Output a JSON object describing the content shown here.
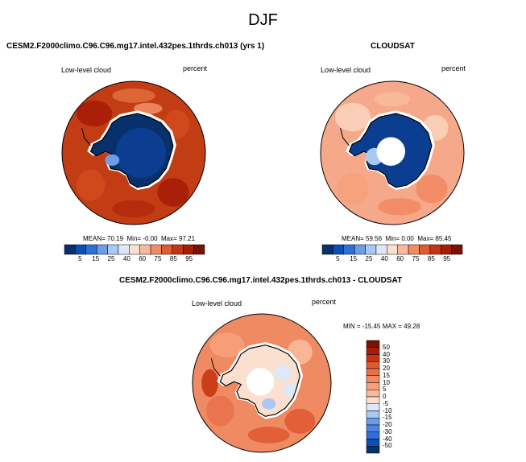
{
  "figure_title": "DJF",
  "panels": {
    "model": {
      "title": "CESM2.F2000climo.C96.C96.mg17.intel.432pes.1thrds.ch013 (yrs 1)",
      "variable": "Low-level cloud",
      "units": "percent",
      "mean_label": "MEAN=",
      "mean": "70.19",
      "min_label": "Min=",
      "min": "-0.00",
      "max_label": "Max=",
      "max": "97.21"
    },
    "obs": {
      "title": "CLOUDSAT",
      "variable": "Low-level cloud",
      "units": "percent",
      "mean_label": "MEAN=",
      "mean": "59.56",
      "min_label": "Min=",
      "min": "0.00",
      "max_label": "Max=",
      "max": "85.45"
    },
    "diff": {
      "title": "CESM2.F2000climo.C96.C96.mg17.intel.432pes.1thrds.ch013 - CLOUDSAT",
      "variable": "Low-level cloud",
      "units": "percent",
      "minmax": "MIN = -15.45  MAX =  49.28"
    }
  },
  "colors": {
    "abs_scale": [
      "#08306b",
      "#0b4fb0",
      "#2f6fd6",
      "#6b9de8",
      "#a9c8f2",
      "#dde9f8",
      "#fbe0d0",
      "#f9b99a",
      "#f28a63",
      "#e05a32",
      "#c83412",
      "#a61c05",
      "#7a1204"
    ],
    "diff_scale": [
      "#08306b",
      "#0b4fb0",
      "#2f6fd6",
      "#4d86e2",
      "#6b9de8",
      "#a9c8f2",
      "#dde9f8",
      "#fbe0d0",
      "#f9b99a",
      "#f7a07b",
      "#f28a63",
      "#e8714a",
      "#e05a32",
      "#c83412",
      "#a61c05",
      "#7a1204"
    ],
    "ocean_model": "#c23c14",
    "ocean_obs": "#f5a98a",
    "ocean_diff": "#ef8a63"
  },
  "chart_data": [
    {
      "type": "heatmap",
      "projection": "south-polar-stereographic",
      "title": "CESM2.F2000climo.C96.C96.mg17.intel.432pes.1thrds.ch013 (yrs 1)",
      "variable": "Low-level cloud",
      "units": "percent",
      "mean": 70.19,
      "min": -0.0,
      "max": 97.21,
      "colorbar_levels": [
        5,
        10,
        15,
        20,
        25,
        30,
        40,
        50,
        60,
        70,
        75,
        80,
        85,
        90,
        95
      ],
      "colorbar_labels": [
        "5",
        "15",
        "25",
        "40",
        "60",
        "75",
        "85",
        "95"
      ]
    },
    {
      "type": "heatmap",
      "projection": "south-polar-stereographic",
      "title": "CLOUDSAT",
      "variable": "Low-level cloud",
      "units": "percent",
      "mean": 59.56,
      "min": 0.0,
      "max": 85.45,
      "colorbar_levels": [
        5,
        10,
        15,
        20,
        25,
        30,
        40,
        50,
        60,
        70,
        75,
        80,
        85,
        90,
        95
      ],
      "colorbar_labels": [
        "5",
        "15",
        "25",
        "40",
        "60",
        "75",
        "85",
        "95"
      ]
    },
    {
      "type": "heatmap",
      "projection": "south-polar-stereographic",
      "title": "CESM2.F2000climo.C96.C96.mg17.intel.432pes.1thrds.ch013 - CLOUDSAT",
      "variable": "Low-level cloud",
      "units": "percent",
      "min": -15.45,
      "max": 49.28,
      "colorbar_levels": [
        -50,
        -40,
        -30,
        -20,
        -15,
        -10,
        -5,
        0,
        5,
        10,
        15,
        20,
        30,
        40,
        50
      ],
      "colorbar_labels": [
        "50",
        "40",
        "30",
        "20",
        "15",
        "10",
        "5",
        "0",
        "-5",
        "-10",
        "-15",
        "-20",
        "-30",
        "-40",
        "-50"
      ]
    }
  ]
}
